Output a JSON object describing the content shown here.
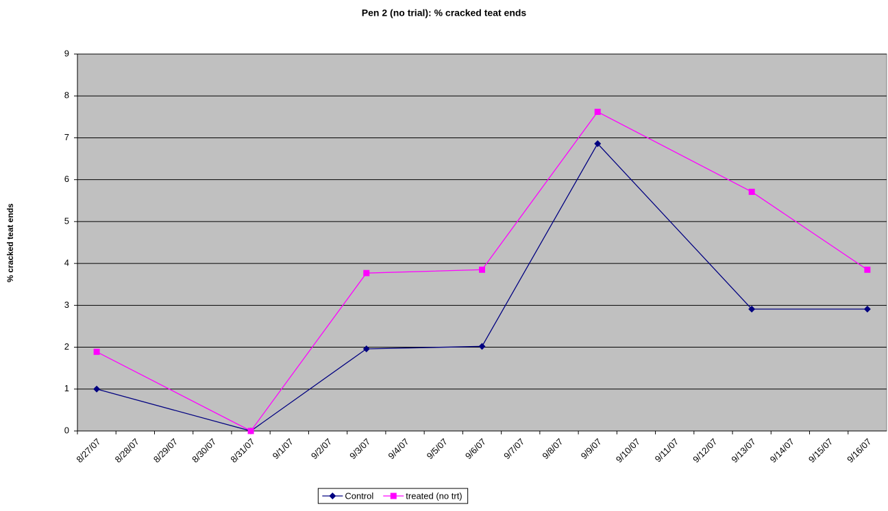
{
  "chart_data": {
    "type": "line",
    "title": "Pen 2 (no trial): % cracked teat ends",
    "y_label": "% cracked teat ends",
    "categories": [
      "8/27/07",
      "8/28/07",
      "8/29/07",
      "8/30/07",
      "8/31/07",
      "9/1/07",
      "9/2/07",
      "9/3/07",
      "9/4/07",
      "9/5/07",
      "9/6/07",
      "9/7/07",
      "9/8/07",
      "9/9/07",
      "9/10/07",
      "9/11/07",
      "9/12/07",
      "9/13/07",
      "9/14/07",
      "9/15/07",
      "9/16/07"
    ],
    "x": [
      "8/27/07",
      "8/31/07",
      "9/3/07",
      "9/6/07",
      "9/9/07",
      "9/13/07",
      "9/16/07"
    ],
    "series": [
      {
        "name": "Control",
        "color": "#000080",
        "marker": "diamond",
        "values": [
          1,
          0,
          1.96,
          2.02,
          6.86,
          2.91,
          2.91
        ]
      },
      {
        "name": "treated (no trt)",
        "color": "#ff00ff",
        "marker": "square",
        "values": [
          1.89,
          0,
          3.77,
          3.85,
          7.62,
          5.71,
          3.85
        ]
      }
    ],
    "ylim": [
      0,
      9
    ],
    "yticks": [
      0,
      1,
      2,
      3,
      4,
      5,
      6,
      7,
      8,
      9
    ],
    "grid": true,
    "legend": "bottom"
  }
}
